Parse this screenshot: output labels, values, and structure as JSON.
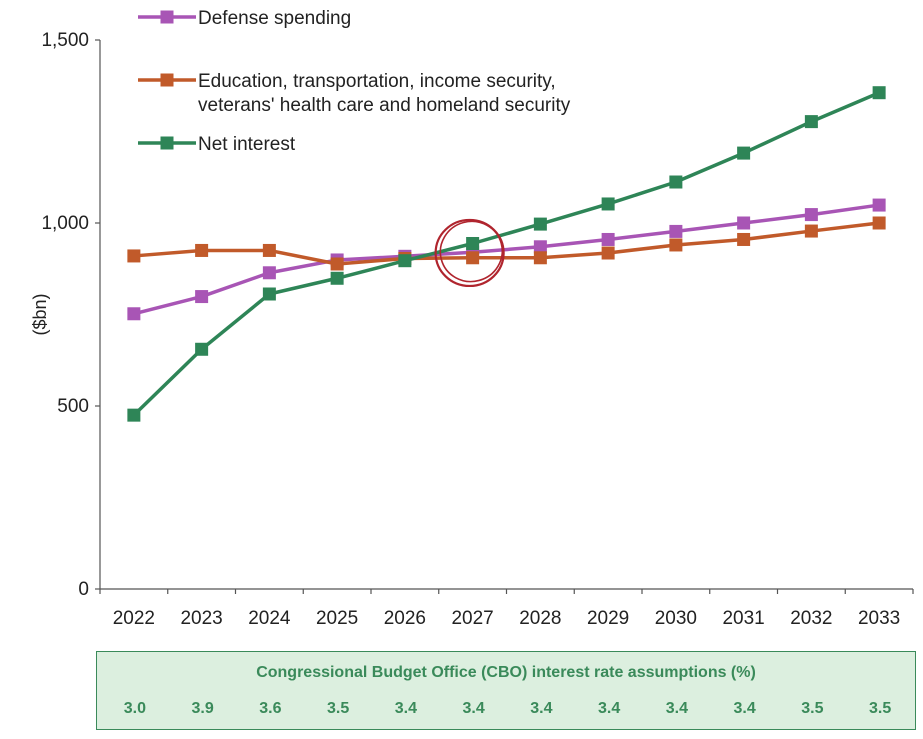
{
  "chart_data": {
    "type": "line",
    "ylabel": "($bn)",
    "xlabel": "",
    "ylim": [
      0,
      1500
    ],
    "yticks": [
      0,
      500,
      1000,
      1500
    ],
    "ytick_labels": [
      "0",
      "500",
      "1,000",
      "1,500"
    ],
    "categories": [
      "2022",
      "2023",
      "2024",
      "2025",
      "2026",
      "2027",
      "2028",
      "2029",
      "2030",
      "2031",
      "2032",
      "2033"
    ],
    "series": [
      {
        "name": "Defense spending",
        "color": "#a855b5",
        "values": [
          752,
          799,
          864,
          899,
          909,
          920,
          935,
          955,
          977,
          1000,
          1023,
          1049
        ]
      },
      {
        "name": "Education, transportation, income security, veterans' health care and homeland security",
        "color": "#c15a2a",
        "values": [
          910,
          925,
          925,
          888,
          903,
          905,
          905,
          918,
          940,
          955,
          978,
          1000
        ]
      },
      {
        "name": "Net interest",
        "color": "#2e8557",
        "values": [
          475,
          655,
          806,
          849,
          897,
          944,
          997,
          1052,
          1112,
          1191,
          1277,
          1356
        ]
      }
    ],
    "legend": {
      "placement": "top-left",
      "lines": [
        [
          "Defense spending"
        ],
        [
          "Education, transportation, income security,",
          "veterans' health care and homeland security"
        ],
        [
          "Net interest"
        ]
      ]
    },
    "annotation": {
      "type": "circle-highlight",
      "category": "2027",
      "color": "#b0252e"
    },
    "grid": false
  },
  "cbo_table": {
    "title": "Congressional Budget Office (CBO) interest rate assumptions (%)",
    "values": [
      "3.0",
      "3.9",
      "3.6",
      "3.5",
      "3.4",
      "3.4",
      "3.4",
      "3.4",
      "3.4",
      "3.4",
      "3.5",
      "3.5"
    ],
    "background": "#dcefdf",
    "text_color": "#3a8a5a"
  }
}
